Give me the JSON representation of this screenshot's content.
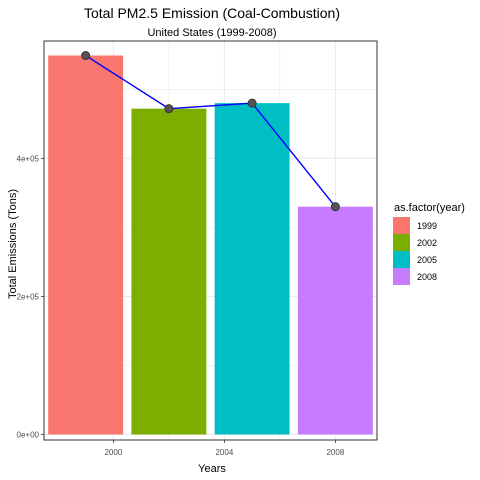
{
  "chart_data": {
    "type": "bar",
    "title": "Total PM2.5 Emission (Coal-Combustion)",
    "subtitle": "United States (1999-2008)",
    "xlabel": "Years",
    "ylabel": "Total Emissions (Tons)",
    "x_tick_labels": [
      "2000",
      "2004",
      "2008"
    ],
    "x_tick_values": [
      2000,
      2004,
      2008
    ],
    "y_tick_labels": [
      "0e+00",
      "2e+05",
      "4e+05"
    ],
    "y_tick_values": [
      0,
      200000,
      400000
    ],
    "xlim": [
      1997.5,
      2009.5
    ],
    "ylim": [
      -8000,
      570000
    ],
    "categories": [
      "1999",
      "2002",
      "2005",
      "2008"
    ],
    "x": [
      1999,
      2002,
      2005,
      2008
    ],
    "values": [
      549000,
      472000,
      480000,
      330000
    ],
    "colors": [
      "#F8766D",
      "#7CAE00",
      "#00BFC4",
      "#C77CFF"
    ],
    "line_color": "#0000FF",
    "point_fill": "#555555",
    "point_stroke": "#333333",
    "grid": true,
    "legend": {
      "position": "right",
      "title": "as.factor(year)",
      "labels": [
        "1999",
        "2002",
        "2005",
        "2008"
      ]
    }
  }
}
